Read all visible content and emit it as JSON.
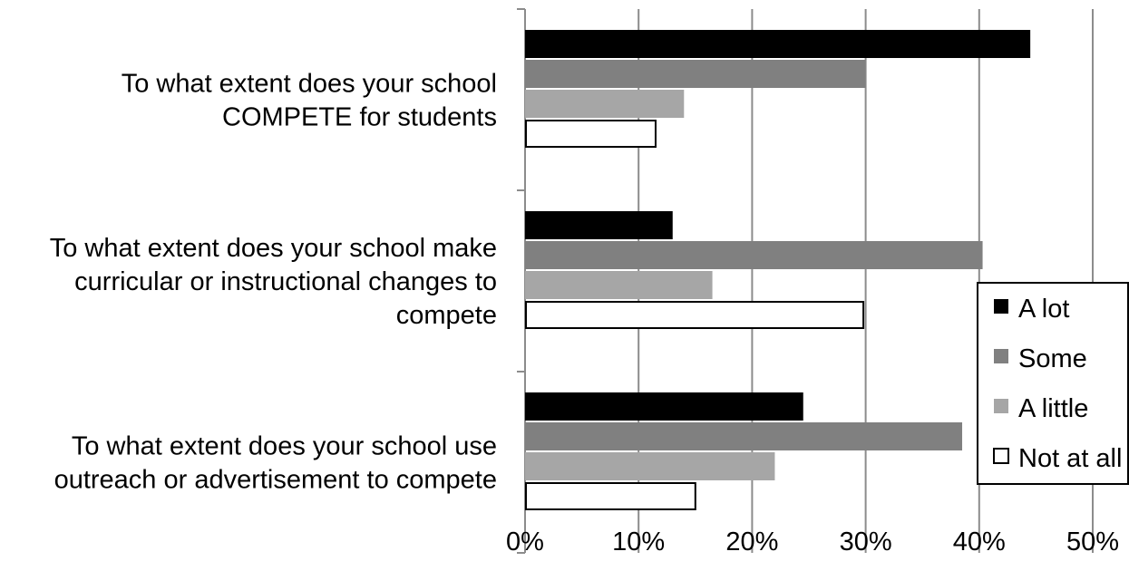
{
  "chart_data": {
    "type": "bar",
    "orientation": "horizontal",
    "categories": [
      {
        "lines": [
          "To what extent does your school",
          "COMPETE for students"
        ]
      },
      {
        "lines": [
          "To what extent does your school make",
          "curricular or instructional changes to",
          "compete"
        ]
      },
      {
        "lines": [
          "To what extent does your school use",
          "outreach or advertisement to compete"
        ]
      }
    ],
    "series": [
      {
        "name": "A lot",
        "color": "#000000",
        "values": [
          44.5,
          13.0,
          24.5
        ]
      },
      {
        "name": "Some",
        "color": "#808080",
        "values": [
          30.0,
          40.3,
          38.5
        ]
      },
      {
        "name": "A little",
        "color": "#a6a6a6",
        "values": [
          14.0,
          16.5,
          22.0
        ]
      },
      {
        "name": "Not at all",
        "color": "#ffffff",
        "values": [
          11.5,
          29.8,
          15.0
        ]
      }
    ],
    "xlim": [
      0,
      50
    ],
    "xticks": [
      "0%",
      "10%",
      "20%",
      "30%",
      "40%",
      "50%"
    ],
    "grid": true,
    "legend_position": "right"
  }
}
